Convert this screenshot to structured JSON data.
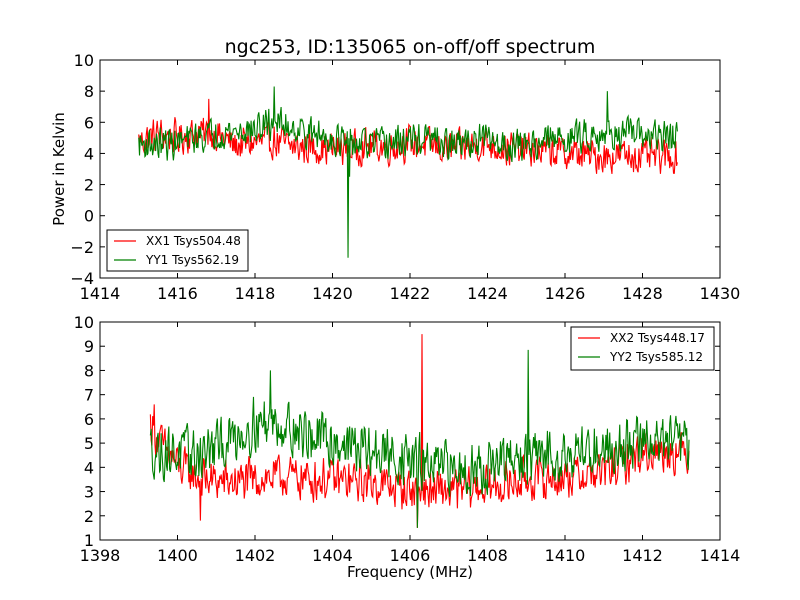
{
  "figure": {
    "title": "ngc253, ID:135065 on-off/off spectrum",
    "background": "#ffffff"
  },
  "chart_data": [
    {
      "type": "line",
      "title": "ngc253, ID:135065 on-off/off spectrum",
      "xlabel": "",
      "ylabel": "Power in Kelvin",
      "xlim": [
        1414,
        1430
      ],
      "ylim": [
        -4,
        10
      ],
      "xticks": [
        1414,
        1416,
        1418,
        1420,
        1422,
        1424,
        1426,
        1428,
        1430
      ],
      "yticks": [
        -4,
        -2,
        0,
        2,
        4,
        6,
        8,
        10
      ],
      "legend": "lower-left",
      "grid": false,
      "series": [
        {
          "name": "XX1 Tsys504.48",
          "color": "#ff0000",
          "x_range": [
            1415.0,
            1428.9
          ],
          "points": [
            [
              1415.0,
              4.8
            ],
            [
              1415.5,
              5.2
            ],
            [
              1416.0,
              5.0
            ],
            [
              1416.5,
              5.3
            ],
            [
              1417.0,
              5.2
            ],
            [
              1417.5,
              4.5
            ],
            [
              1418.0,
              4.7
            ],
            [
              1418.5,
              4.8
            ],
            [
              1419.0,
              4.4
            ],
            [
              1419.5,
              4.4
            ],
            [
              1420.0,
              4.3
            ],
            [
              1420.3,
              4.4
            ],
            [
              1420.5,
              4.3
            ],
            [
              1421.0,
              4.5
            ],
            [
              1421.5,
              4.4
            ],
            [
              1422.0,
              4.7
            ],
            [
              1422.5,
              4.5
            ],
            [
              1423.0,
              4.3
            ],
            [
              1423.5,
              4.5
            ],
            [
              1424.0,
              4.6
            ],
            [
              1424.5,
              4.3
            ],
            [
              1425.0,
              4.2
            ],
            [
              1425.5,
              4.2
            ],
            [
              1426.0,
              4.0
            ],
            [
              1426.5,
              3.9
            ],
            [
              1427.0,
              3.8
            ],
            [
              1427.5,
              3.9
            ],
            [
              1428.0,
              3.8
            ],
            [
              1428.9,
              3.8
            ]
          ],
          "spikes": [
            [
              1416.8,
              7.5
            ]
          ],
          "noise": 0.7
        },
        {
          "name": "YY1 Tsys562.19",
          "color": "#008000",
          "x_range": [
            1415.0,
            1428.9
          ],
          "points": [
            [
              1415.0,
              4.6
            ],
            [
              1415.5,
              4.6
            ],
            [
              1416.0,
              4.7
            ],
            [
              1416.5,
              5.0
            ],
            [
              1417.0,
              5.3
            ],
            [
              1417.5,
              5.4
            ],
            [
              1418.0,
              5.5
            ],
            [
              1418.5,
              6.0
            ],
            [
              1419.0,
              5.7
            ],
            [
              1419.5,
              5.2
            ],
            [
              1420.0,
              5.0
            ],
            [
              1420.2,
              4.8
            ],
            [
              1420.5,
              4.6
            ],
            [
              1421.0,
              4.6
            ],
            [
              1421.5,
              4.6
            ],
            [
              1422.0,
              4.9
            ],
            [
              1422.5,
              4.9
            ],
            [
              1423.0,
              4.5
            ],
            [
              1423.5,
              4.7
            ],
            [
              1424.0,
              4.9
            ],
            [
              1424.5,
              4.5
            ],
            [
              1425.0,
              4.6
            ],
            [
              1425.5,
              4.8
            ],
            [
              1426.0,
              5.0
            ],
            [
              1426.5,
              5.2
            ],
            [
              1427.0,
              5.3
            ],
            [
              1427.5,
              5.2
            ],
            [
              1428.0,
              5.2
            ],
            [
              1428.9,
              5.0
            ]
          ],
          "spikes": [
            [
              1418.5,
              8.3
            ],
            [
              1420.4,
              -2.7
            ],
            [
              1427.1,
              8.0
            ],
            [
              1420.45,
              2.5
            ]
          ],
          "noise": 0.65
        }
      ]
    },
    {
      "type": "line",
      "title": "",
      "xlabel": "Frequency (MHz)",
      "ylabel": "",
      "xlim": [
        1398,
        1414
      ],
      "ylim": [
        1,
        10
      ],
      "xticks": [
        1398,
        1400,
        1402,
        1404,
        1406,
        1408,
        1410,
        1412,
        1414
      ],
      "yticks": [
        1,
        2,
        3,
        4,
        5,
        6,
        7,
        8,
        9,
        10
      ],
      "legend": "upper-right",
      "grid": false,
      "series": [
        {
          "name": "XX2 Tsys448.17",
          "color": "#ff0000",
          "x_range": [
            1399.3,
            1413.2
          ],
          "points": [
            [
              1399.3,
              5.8
            ],
            [
              1399.6,
              4.9
            ],
            [
              1400.0,
              4.1
            ],
            [
              1400.5,
              3.6
            ],
            [
              1401.0,
              3.4
            ],
            [
              1401.5,
              3.4
            ],
            [
              1402.0,
              3.5
            ],
            [
              1402.5,
              3.6
            ],
            [
              1403.0,
              3.6
            ],
            [
              1403.5,
              3.5
            ],
            [
              1404.0,
              3.5
            ],
            [
              1404.5,
              3.4
            ],
            [
              1405.0,
              3.4
            ],
            [
              1405.5,
              3.2
            ],
            [
              1406.0,
              3.1
            ],
            [
              1406.5,
              3.0
            ],
            [
              1407.0,
              3.0
            ],
            [
              1407.5,
              3.1
            ],
            [
              1408.0,
              3.2
            ],
            [
              1408.5,
              3.3
            ],
            [
              1409.0,
              3.5
            ],
            [
              1409.5,
              3.5
            ],
            [
              1410.0,
              3.6
            ],
            [
              1410.5,
              3.7
            ],
            [
              1411.0,
              3.8
            ],
            [
              1411.5,
              4.2
            ],
            [
              1412.0,
              4.6
            ],
            [
              1412.5,
              4.7
            ],
            [
              1413.2,
              4.6
            ]
          ],
          "spikes": [
            [
              1406.3,
              9.5
            ],
            [
              1406.2,
              1.5
            ],
            [
              1399.4,
              6.6
            ],
            [
              1400.6,
              1.8
            ]
          ],
          "noise": 0.55
        },
        {
          "name": "YY2 Tsys585.12",
          "color": "#008000",
          "x_range": [
            1399.3,
            1413.2
          ],
          "points": [
            [
              1399.3,
              4.8
            ],
            [
              1399.6,
              4.6
            ],
            [
              1400.0,
              4.6
            ],
            [
              1400.5,
              4.5
            ],
            [
              1401.0,
              4.8
            ],
            [
              1401.5,
              5.3
            ],
            [
              1402.0,
              5.8
            ],
            [
              1402.5,
              5.9
            ],
            [
              1403.0,
              5.6
            ],
            [
              1403.5,
              5.2
            ],
            [
              1404.0,
              5.1
            ],
            [
              1404.5,
              4.9
            ],
            [
              1405.0,
              4.6
            ],
            [
              1405.5,
              4.5
            ],
            [
              1406.0,
              4.3
            ],
            [
              1406.5,
              4.0
            ],
            [
              1407.0,
              3.9
            ],
            [
              1407.5,
              4.0
            ],
            [
              1408.0,
              4.0
            ],
            [
              1408.5,
              4.2
            ],
            [
              1409.0,
              4.3
            ],
            [
              1409.5,
              4.5
            ],
            [
              1410.0,
              4.6
            ],
            [
              1410.5,
              4.7
            ],
            [
              1411.0,
              4.8
            ],
            [
              1411.5,
              4.9
            ],
            [
              1412.0,
              5.1
            ],
            [
              1412.5,
              5.1
            ],
            [
              1413.2,
              4.9
            ]
          ],
          "spikes": [
            [
              1409.05,
              8.85
            ],
            [
              1402.4,
              8.0
            ],
            [
              1406.2,
              1.5
            ]
          ],
          "noise": 0.7
        }
      ]
    }
  ]
}
